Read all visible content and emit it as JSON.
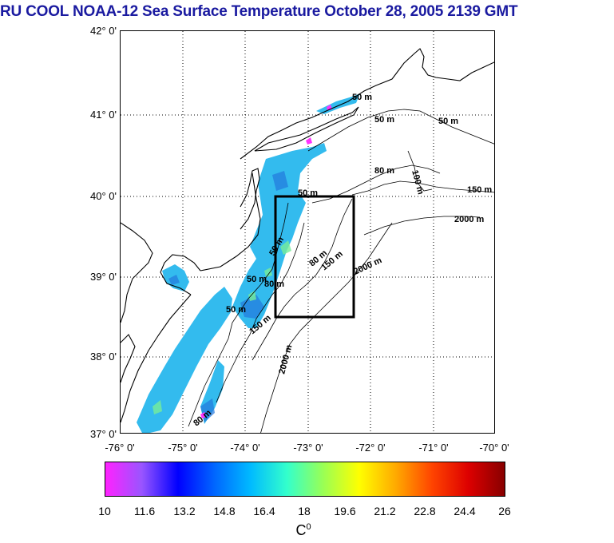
{
  "title": "RU COOL  NOAA-12 Sea Surface Temperature October 28, 2005 2139 GMT",
  "map": {
    "lat_labels": [
      "42° 0'",
      "41° 0'",
      "40° 0'",
      "39° 0'",
      "38° 0'",
      "37° 0'"
    ],
    "lon_labels": [
      "-76° 0'",
      "-75° 0'",
      "-74° 0'",
      "-73° 0'",
      "-72° 0'",
      "-71° 0'",
      "-70° 0'"
    ],
    "lat_range": [
      37,
      42
    ],
    "lon_range": [
      -76,
      -70
    ],
    "study_box": {
      "lon": [
        -73.45,
        -72.45
      ],
      "lat": [
        38.5,
        40.0
      ]
    },
    "contour_labels": [
      "50 m",
      "50 m",
      "50 m",
      "80 m",
      "100 m",
      "150 m",
      "2000 m",
      "50 m",
      "80 m",
      "150 m",
      "2000 m",
      "50 m",
      "50 m",
      "50 m",
      "150 m",
      "80 m",
      "2000 m",
      "80 m"
    ]
  },
  "colorbar": {
    "tick_labels": [
      "10",
      "11.6",
      "13.2",
      "14.8",
      "16.4",
      "18",
      "19.6",
      "21.2",
      "22.8",
      "24.4",
      "26"
    ],
    "unit_base": "C",
    "unit_sup": "0",
    "range": [
      10,
      26
    ],
    "colors": [
      "#ff22ff",
      "#9955ff",
      "#0000ff",
      "#0066ff",
      "#00bbff",
      "#33ffcc",
      "#99ff55",
      "#ffff00",
      "#ffaa00",
      "#ff4400",
      "#dd0000",
      "#880000"
    ]
  },
  "colors": {
    "title": "#1a1aa0",
    "land": "#ffffff",
    "coast": "#000000",
    "sst_main": "#33bbee",
    "sst_dark": "#2277dd"
  }
}
